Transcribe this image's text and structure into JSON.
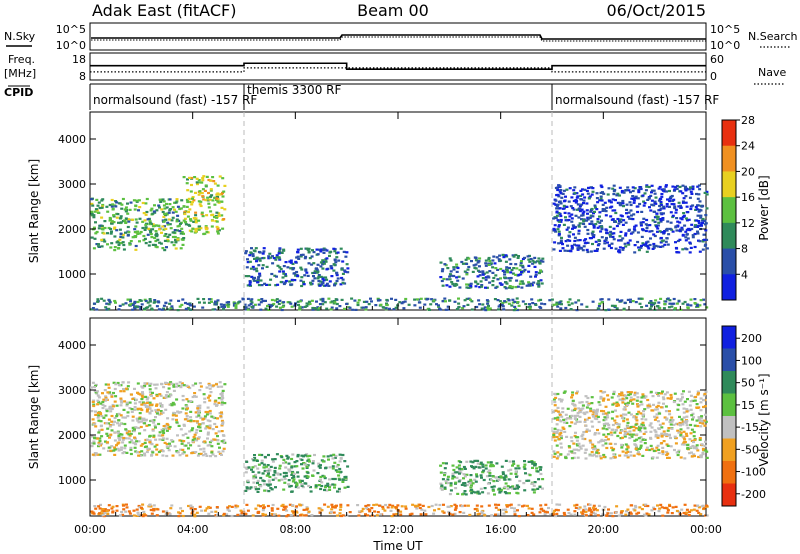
{
  "header": {
    "station": "Adak East (fitACF)",
    "beam": "Beam 00",
    "date": "06/Oct/2015"
  },
  "status_panels": {
    "nsky_label": "N.Sky",
    "nsearch_label": "N.Search",
    "freq_label": "Freq.",
    "freq_unit": "[MHz]",
    "nave_label": "Nave",
    "cpid_label": "CPID",
    "noise_ticks_left": [
      "10^5",
      "10^0"
    ],
    "noise_ticks_right": [
      "10^5",
      "10^0"
    ],
    "freq_ticks": [
      "18",
      "8"
    ],
    "nave_ticks": [
      "60",
      "0"
    ],
    "cpid_segments": [
      {
        "start_hour": 0,
        "end_hour": 6,
        "label": "normalsound (fast) -157 RF"
      },
      {
        "start_hour": 6,
        "end_hour": 18,
        "label": "themis 3300 RF"
      },
      {
        "start_hour": 18,
        "end_hour": 24,
        "label": "normalsound (fast) -157 RF"
      }
    ],
    "freq_steps": [
      {
        "start_hour": 0,
        "end_hour": 6,
        "mhz": 13.3
      },
      {
        "start_hour": 6,
        "end_hour": 10,
        "mhz": 14.2
      },
      {
        "start_hour": 10,
        "end_hour": 18,
        "mhz": 12.0
      },
      {
        "start_hour": 18,
        "end_hour": 24,
        "mhz": 13.3
      }
    ],
    "nave_steps": [
      {
        "start_hour": 0,
        "end_hour": 6,
        "value": 18
      },
      {
        "start_hour": 6,
        "end_hour": 18,
        "value": 27
      },
      {
        "start_hour": 18,
        "end_hour": 24,
        "value": 18
      }
    ]
  },
  "chart_data": [
    {
      "type": "heatmap",
      "ylabel": "Slant Range [km]",
      "ylim": [
        200,
        4600
      ],
      "yticks": [
        "1000",
        "2000",
        "3000",
        "4000"
      ],
      "colorbar": {
        "label": "Power [dB]",
        "ticks": [
          "4",
          "8",
          "12",
          "16",
          "20",
          "24",
          "28"
        ],
        "colors": [
          "#1020e0",
          "#2a4fa8",
          "#2f8a5a",
          "#5cc040",
          "#e8d020",
          "#f09020",
          "#e83010"
        ]
      },
      "echo_regions": [
        {
          "start_hour": 0.0,
          "end_hour": 3.6,
          "range_km_from": 1550,
          "range_km_to": 2700,
          "power_db": 14
        },
        {
          "start_hour": 3.6,
          "end_hour": 5.2,
          "range_km_from": 1900,
          "range_km_to": 3200,
          "power_db": 18
        },
        {
          "start_hour": 6.0,
          "end_hour": 10.0,
          "range_km_from": 750,
          "range_km_to": 1600,
          "power_db": 9
        },
        {
          "start_hour": 13.6,
          "end_hour": 17.6,
          "range_km_from": 700,
          "range_km_to": 1450,
          "power_db": 10
        },
        {
          "start_hour": 18.0,
          "end_hour": 24.0,
          "range_km_from": 1500,
          "range_km_to": 3000,
          "power_db": 6
        },
        {
          "start_hour": 0.0,
          "end_hour": 24.0,
          "range_km_from": 220,
          "range_km_to": 480,
          "power_db": 11
        }
      ]
    },
    {
      "type": "heatmap",
      "ylabel": "Slant Range [km]",
      "xlabel": "Time UT",
      "ylim": [
        200,
        4600
      ],
      "yticks": [
        "1000",
        "2000",
        "3000",
        "4000"
      ],
      "xticks": [
        "00:00",
        "04:00",
        "08:00",
        "12:00",
        "16:00",
        "20:00",
        "00:00"
      ],
      "colorbar": {
        "label": "Velocity [m s⁻¹]",
        "ticks": [
          "200",
          "100",
          "50",
          "15",
          "-15",
          "-50",
          "-100",
          "-200"
        ],
        "colors": [
          "#1020e0",
          "#2a4fa8",
          "#2f8a5a",
          "#5cc040",
          "#c0c0c0",
          "#f0a020",
          "#f07010",
          "#e83010"
        ]
      },
      "echo_regions": [
        {
          "start_hour": 0.0,
          "end_hour": 5.2,
          "range_km_from": 1550,
          "range_km_to": 3200,
          "velocity": 0
        },
        {
          "start_hour": 6.0,
          "end_hour": 10.0,
          "range_km_from": 750,
          "range_km_to": 1600,
          "velocity": 30
        },
        {
          "start_hour": 13.6,
          "end_hour": 17.6,
          "range_km_from": 700,
          "range_km_to": 1450,
          "velocity": 30
        },
        {
          "start_hour": 18.0,
          "end_hour": 24.0,
          "range_km_from": 1500,
          "range_km_to": 3000,
          "velocity": 0
        },
        {
          "start_hour": 0.0,
          "end_hour": 24.0,
          "range_km_from": 220,
          "range_km_to": 480,
          "velocity": -30
        }
      ]
    }
  ]
}
